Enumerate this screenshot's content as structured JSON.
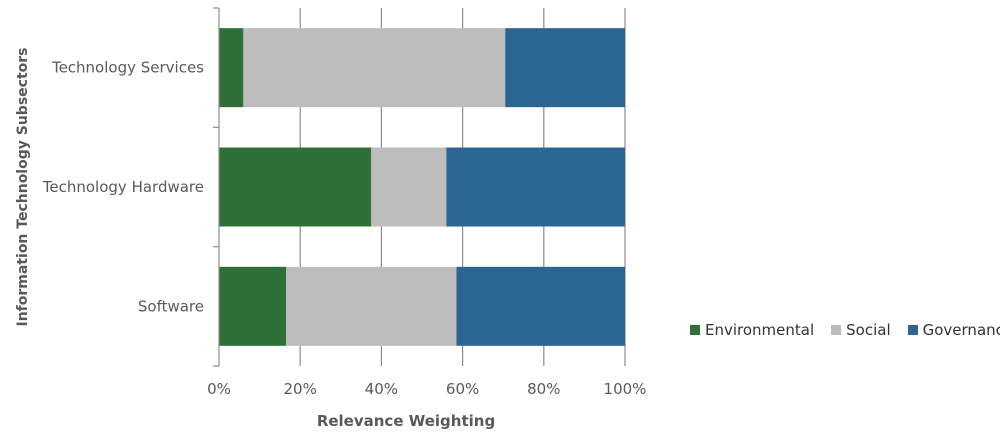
{
  "chart_data": {
    "type": "bar",
    "orientation": "horizontal",
    "stacked": "percent",
    "categories": [
      "Technology Services",
      "Technology Hardware",
      "Software"
    ],
    "series": [
      {
        "name": "Environmental",
        "color": "#2e7038",
        "values": [
          6,
          37.5,
          16.5
        ]
      },
      {
        "name": "Social",
        "color": "#bdbdbd",
        "values": [
          64.5,
          18.5,
          42
        ]
      },
      {
        "name": "Governance",
        "color": "#2b6591",
        "values": [
          29.5,
          44,
          41.5
        ]
      }
    ],
    "xlabel": "Relevance Weighting",
    "ylabel": "Information Technology Subsectors",
    "xlim": [
      0,
      100
    ],
    "xticks": [
      "0%",
      "20%",
      "40%",
      "60%",
      "80%",
      "100%"
    ],
    "grid": "vertical",
    "legend": "bottom-right"
  }
}
